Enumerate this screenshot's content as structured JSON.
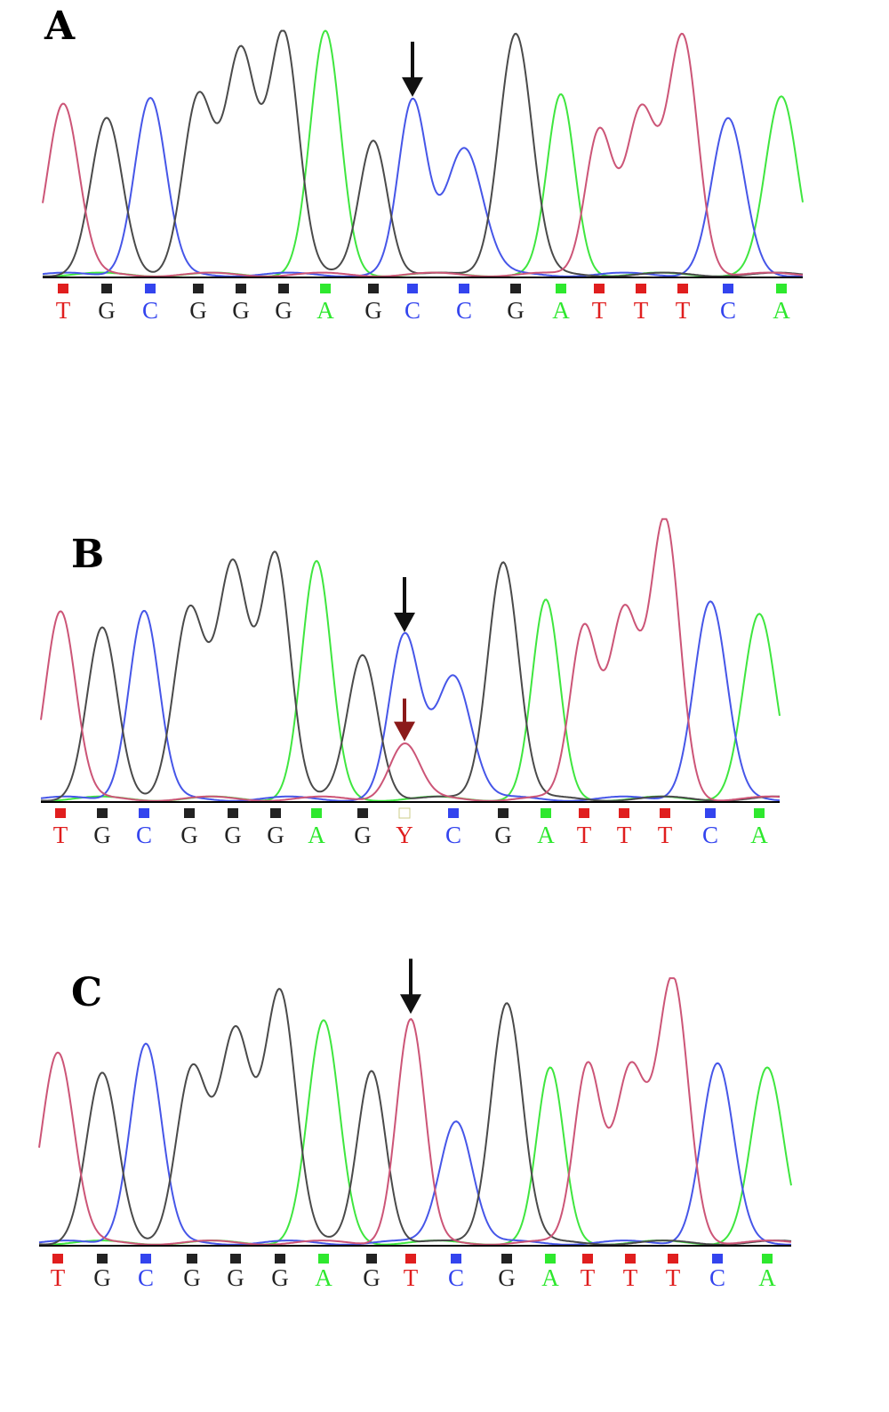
{
  "colors": {
    "A": "#2ee82e",
    "C": "#3344ee",
    "G": "#222222",
    "T": "#e01e1e",
    "Y": "#e01e1e",
    "trace_A": "#3fe63f",
    "trace_C": "#4656e8",
    "trace_G": "#4a4a4a",
    "trace_T": "#cc5577",
    "baseline": "#000000",
    "arrow": "#111111",
    "arrow_het": "#8b1a1a"
  },
  "panels": [
    {
      "label": "A",
      "bases": [
        "T",
        "G",
        "C",
        "G",
        "G",
        "G",
        "A",
        "G",
        "C",
        "C",
        "G",
        "A",
        "T",
        "T",
        "T",
        "C",
        "A"
      ],
      "peak_heights": [
        0.71,
        0.64,
        0.73,
        0.73,
        0.91,
        1.0,
        1.0,
        0.56,
        0.71,
        0.53,
        1.0,
        0.74,
        0.6,
        0.67,
        0.98,
        0.64,
        0.73
      ],
      "arrow_base_index": 8,
      "icon": "down-arrow-icon"
    },
    {
      "label": "B",
      "bases": [
        "T",
        "G",
        "C",
        "G",
        "G",
        "G",
        "A",
        "G",
        "Y",
        "C",
        "G",
        "A",
        "T",
        "T",
        "T",
        "C",
        "A"
      ],
      "peak_heights": [
        0.68,
        0.61,
        0.68,
        0.68,
        0.83,
        0.88,
        0.85,
        0.52,
        0.58,
        0.45,
        0.86,
        0.71,
        0.62,
        0.67,
        1.0,
        0.71,
        0.66
      ],
      "secondary_peak": {
        "base_index": 8,
        "nucleotide": "T",
        "height": 0.2
      },
      "arrow_base_index": 8,
      "second_arrow_base_index": 8,
      "icon": "down-arrow-icon"
    },
    {
      "label": "C",
      "bases": [
        "T",
        "G",
        "C",
        "G",
        "G",
        "G",
        "A",
        "G",
        "T",
        "C",
        "G",
        "A",
        "T",
        "T",
        "T",
        "C",
        "A"
      ],
      "peak_heights": [
        0.73,
        0.64,
        0.76,
        0.66,
        0.79,
        0.96,
        0.84,
        0.66,
        0.85,
        0.47,
        0.92,
        0.66,
        0.68,
        0.66,
        1.0,
        0.68,
        0.66
      ],
      "arrow_base_index": 8,
      "icon": "down-arrow-icon"
    }
  ]
}
